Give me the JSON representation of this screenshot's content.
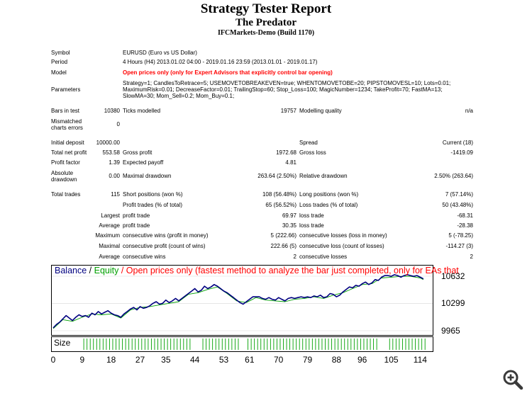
{
  "report": {
    "title": "Strategy Tester Report",
    "subtitle": "The Predator",
    "build": "IFCMarkets-Demo (Build 1170)"
  },
  "info": {
    "symbol_label": "Symbol",
    "symbol_value": "EURUSD (Euro vs US Dollar)",
    "period_label": "Period",
    "period_value": "4 Hours (H4) 2013.01.02 04:00 - 2019.01.16 23:59 (2013.01.01 - 2019.01.17)",
    "model_label": "Model",
    "model_value": "Open prices only (only for Expert Advisors that explicitly control bar opening)",
    "parameters_label": "Parameters",
    "parameters_value": "Strategy=1; CandlesToRetrace=5; USEMOVETOBREAKEVEN=true; WHENTOMOVETOBE=20; PIPSTOMOVESL=10; Lots=0.01; MaximumRisk=0.01; DecreaseFactor=0.01; TrailingStop=60; Stop_Loss=100; MagicNumber=1234; TakeProfit=70; FastMA=13; SlowMA=30; Mom_Sell=0.2; Mom_Buy=0.1;"
  },
  "stats": {
    "bars_label": "Bars in test",
    "bars_value": "10380",
    "ticks_label": "Ticks modelled",
    "ticks_value": "19757",
    "quality_label": "Modelling quality",
    "quality_value": "n/a",
    "mismatch_label": "Mismatched charts errors",
    "mismatch_value": "0",
    "deposit_label": "Initial deposit",
    "deposit_value": "10000.00",
    "spread_label": "Spread",
    "spread_value": "Current (18)",
    "netprofit_label": "Total net profit",
    "netprofit_value": "553.58",
    "grossprofit_label": "Gross profit",
    "grossprofit_value": "1972.68",
    "grossloss_label": "Gross loss",
    "grossloss_value": "-1419.09",
    "pf_label": "Profit factor",
    "pf_value": "1.39",
    "payoff_label": "Expected payoff",
    "payoff_value": "4.81",
    "absdd_label": "Absolute drawdown",
    "absdd_value": "0.00",
    "maxdd_label": "Maximal drawdown",
    "maxdd_value": "263.64 (2.50%)",
    "reldd_label": "Relative drawdown",
    "reldd_value": "2.50% (263.64)",
    "trades_label": "Total trades",
    "trades_value": "115",
    "short_label": "Short positions (won %)",
    "short_value": "108 (56.48%)",
    "long_label": "Long positions (won %)",
    "long_value": "7 (57.14%)",
    "ptrades_label": "Profit trades (% of total)",
    "ptrades_value": "65 (56.52%)",
    "ltrades_label": "Loss trades (% of total)",
    "ltrades_value": "50 (43.48%)",
    "largest_label": "Largest",
    "largest_profit_label": "profit trade",
    "largest_profit_value": "69.97",
    "largest_loss_label": "loss trade",
    "largest_loss_value": "-68.31",
    "average_label": "Average",
    "average_profit_label": "profit trade",
    "average_profit_value": "30.35",
    "average_loss_label": "loss trade",
    "average_loss_value": "-28.38",
    "maximum_label": "Maximum",
    "max_wins_label": "consecutive wins (profit in money)",
    "max_wins_value": "5 (222.66)",
    "max_losses_label": "consecutive losses (loss in money)",
    "max_losses_value": "5 (-78.25)",
    "maximal_label": "Maximal",
    "maximal_profit_label": "consecutive profit (count of wins)",
    "maximal_profit_value": "222.66 (5)",
    "maximal_loss_label": "consecutive loss (count of losses)",
    "maximal_loss_value": "-114.27 (3)",
    "average2_label": "Average",
    "avg_wins_label": "consecutive wins",
    "avg_wins_value": "2",
    "avg_losses_label": "consecutive losses",
    "avg_losses_value": "2"
  },
  "chart": {
    "legend_balance": "Balance",
    "legend_sep": " / ",
    "legend_equity": "Equity",
    "legend_rest": " / Open prices only (fastest method to analyze the bar just completed, only for EAs that",
    "size_label": "Size",
    "colors": {
      "balance": "#000080",
      "equity": "#00a000",
      "legend_red": "#ff0000",
      "size_bars": "#00a000"
    }
  },
  "chart_data": {
    "type": "line",
    "x_ticks": [
      0,
      9,
      18,
      27,
      35,
      44,
      53,
      61,
      70,
      79,
      88,
      96,
      105,
      114
    ],
    "y_ticks": [
      9965,
      10299,
      10632
    ],
    "ylim": [
      9965,
      10632
    ],
    "xlim": [
      0,
      117
    ],
    "series": [
      {
        "name": "Balance",
        "x": [
          0,
          1,
          2,
          3,
          4,
          5,
          6,
          7,
          8,
          9,
          10,
          11,
          12,
          13,
          14,
          15,
          16,
          17,
          18,
          19,
          20,
          21,
          22,
          23,
          24,
          25,
          26,
          27,
          28,
          29,
          30,
          31,
          32,
          33,
          34,
          35,
          36,
          37,
          38,
          39,
          40,
          41,
          42,
          43,
          44,
          45,
          46,
          47,
          48,
          49,
          50,
          51,
          52,
          53,
          54,
          55,
          56,
          57,
          58,
          59,
          60,
          61,
          62,
          63,
          64,
          65,
          66,
          67,
          68,
          69,
          70,
          71,
          72,
          73,
          74,
          75,
          76,
          77,
          78,
          79,
          80,
          81,
          82,
          83,
          84,
          85,
          86,
          87,
          88,
          89,
          90,
          91,
          92,
          93,
          94,
          95,
          96,
          97,
          98,
          99,
          100,
          101,
          102,
          103,
          104,
          105,
          106,
          107,
          108,
          109,
          110,
          111,
          112,
          113,
          114,
          115
        ],
        "y": [
          10000,
          10040,
          10070,
          10110,
          10150,
          10120,
          10090,
          10130,
          10160,
          10140,
          10150,
          10130,
          10180,
          10160,
          10200,
          10170,
          10190,
          10210,
          10180,
          10160,
          10150,
          10130,
          10170,
          10200,
          10230,
          10250,
          10220,
          10260,
          10240,
          10250,
          10270,
          10300,
          10320,
          10290,
          10300,
          10340,
          10310,
          10330,
          10360,
          10330,
          10360,
          10390,
          10420,
          10450,
          10480,
          10440,
          10460,
          10510,
          10480,
          10500,
          10530,
          10510,
          10480,
          10450,
          10430,
          10400,
          10370,
          10340,
          10310,
          10290,
          10320,
          10350,
          10380,
          10380,
          10380,
          10360,
          10350,
          10370,
          10350,
          10340,
          10370,
          10350,
          10330,
          10360,
          10370,
          10360,
          10370,
          10380,
          10370,
          10380,
          10370,
          10390,
          10380,
          10400,
          10370,
          10380,
          10420,
          10410,
          10380,
          10400,
          10440,
          10470,
          10500,
          10490,
          10520,
          10510,
          10540,
          10560,
          10530,
          10550,
          10590,
          10580,
          10620,
          10640,
          10640,
          10630,
          10650,
          10640,
          10620,
          10640,
          10650,
          10640,
          10630,
          10640,
          10620,
          10600
        ]
      },
      {
        "name": "Equity",
        "x": [
          0,
          3,
          6,
          9,
          12,
          15,
          18,
          21,
          24,
          27,
          30,
          33,
          36,
          39,
          42,
          45,
          48,
          51,
          54,
          57,
          60,
          63,
          66,
          69,
          72,
          75,
          78,
          81,
          84,
          87,
          90,
          93,
          96,
          99,
          102,
          105,
          108,
          111,
          114,
          115
        ],
        "y": [
          9990,
          10100,
          10080,
          10130,
          10170,
          10160,
          10170,
          10120,
          10220,
          10250,
          10260,
          10280,
          10300,
          10320,
          10410,
          10430,
          10470,
          10500,
          10420,
          10330,
          10310,
          10370,
          10340,
          10330,
          10320,
          10350,
          10360,
          10380,
          10360,
          10400,
          10430,
          10480,
          10530,
          10540,
          10610,
          10620,
          10630,
          10630,
          10610,
          10590
        ]
      }
    ]
  }
}
